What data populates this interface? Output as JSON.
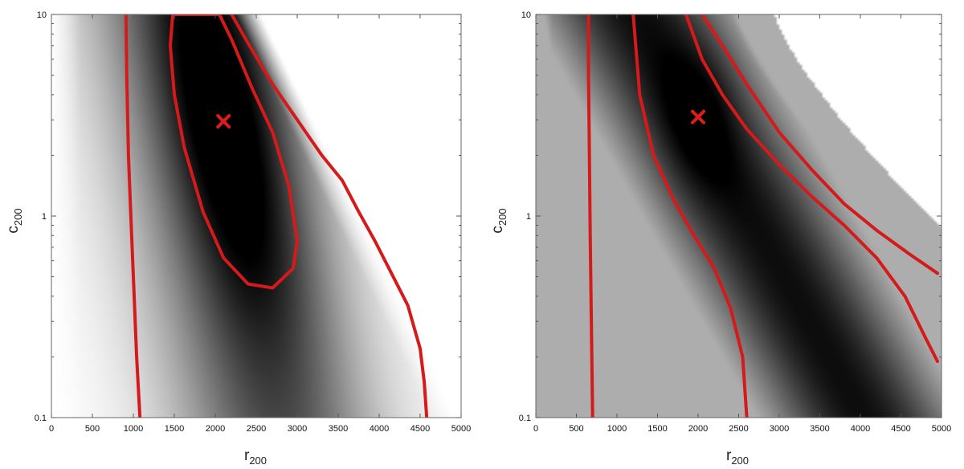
{
  "chart_data": [
    {
      "type": "heatmap",
      "panel": "left",
      "xlabel": "r",
      "xlabel_sub": "200",
      "ylabel": "c",
      "ylabel_sub": "200",
      "xlim": [
        0,
        5000
      ],
      "ylim": [
        0.1,
        10
      ],
      "y_scale": "log",
      "x_ticks": [
        "0",
        "500",
        "1000",
        "1500",
        "2000",
        "2500",
        "3000",
        "3500",
        "4000",
        "4500",
        "5000"
      ],
      "y_ticks": [
        "0.1",
        "1",
        "10"
      ],
      "colormap": "grayscale (darker = higher likelihood)",
      "best_fit": {
        "r200": 2100,
        "c200": 2.95
      },
      "contours": [
        {
          "name": "inner contour",
          "points": [
            [
              2100,
              0.62
            ],
            [
              2400,
              0.46
            ],
            [
              2700,
              0.44
            ],
            [
              2950,
              0.55
            ],
            [
              3000,
              0.75
            ],
            [
              2900,
              1.4
            ],
            [
              2700,
              2.6
            ],
            [
              2450,
              4.3
            ],
            [
              2200,
              7.5
            ],
            [
              2050,
              10
            ],
            [
              1480,
              10
            ],
            [
              1450,
              7
            ],
            [
              1500,
              4
            ],
            [
              1620,
              2.2
            ],
            [
              1850,
              1.05
            ],
            [
              2100,
              0.62
            ]
          ]
        },
        {
          "name": "outer contour",
          "points": [
            [
              2200,
              10
            ],
            [
              2400,
              7.2
            ],
            [
              2700,
              4.5
            ],
            [
              3000,
              3.0
            ],
            [
              3300,
              2.0
            ],
            [
              3550,
              1.5
            ],
            [
              3750,
              1.05
            ],
            [
              3950,
              0.75
            ],
            [
              4150,
              0.52
            ],
            [
              4350,
              0.36
            ],
            [
              4500,
              0.22
            ],
            [
              4550,
              0.15
            ],
            [
              4580,
              0.1
            ]
          ]
        },
        {
          "name": "left contour",
          "points": [
            [
              910,
              10
            ],
            [
              920,
              5
            ],
            [
              940,
              2
            ],
            [
              970,
              1
            ],
            [
              1000,
              0.5
            ],
            [
              1040,
              0.2
            ],
            [
              1080,
              0.1
            ]
          ]
        }
      ]
    },
    {
      "type": "heatmap",
      "panel": "right",
      "xlabel": "r",
      "xlabel_sub": "200",
      "ylabel": "c",
      "ylabel_sub": "200",
      "xlim": [
        0,
        5000
      ],
      "ylim": [
        0.1,
        10
      ],
      "y_scale": "log",
      "x_ticks": [
        "0",
        "500",
        "1000",
        "1500",
        "2000",
        "2500",
        "3000",
        "3500",
        "4000",
        "4500",
        "5000"
      ],
      "y_ticks": [
        "0.1",
        "1",
        "10"
      ],
      "colormap": "grayscale (darker = higher likelihood)",
      "best_fit": {
        "r200": 2000,
        "c200": 3.1
      },
      "contours": [
        {
          "name": "left contour",
          "points": [
            [
              650,
              10
            ],
            [
              650,
              5
            ],
            [
              660,
              2
            ],
            [
              670,
              0.8
            ],
            [
              680,
              0.4
            ],
            [
              700,
              0.1
            ]
          ]
        },
        {
          "name": "middle contour",
          "points": [
            [
              1200,
              10
            ],
            [
              1280,
              4
            ],
            [
              1450,
              2
            ],
            [
              1700,
              1.2
            ],
            [
              1950,
              0.8
            ],
            [
              2200,
              0.55
            ],
            [
              2400,
              0.35
            ],
            [
              2550,
              0.2
            ],
            [
              2600,
              0.1
            ]
          ]
        },
        {
          "name": "inner right contour",
          "points": [
            [
              1850,
              10
            ],
            [
              2050,
              6
            ],
            [
              2300,
              4
            ],
            [
              2600,
              2.7
            ],
            [
              3000,
              1.8
            ],
            [
              3400,
              1.25
            ],
            [
              3800,
              0.9
            ],
            [
              4200,
              0.62
            ],
            [
              4550,
              0.4
            ],
            [
              4800,
              0.25
            ],
            [
              4950,
              0.19
            ]
          ]
        },
        {
          "name": "outer right contour",
          "points": [
            [
              2050,
              10
            ],
            [
              2300,
              7
            ],
            [
              2600,
              4.5
            ],
            [
              3000,
              2.6
            ],
            [
              3400,
              1.7
            ],
            [
              3800,
              1.15
            ],
            [
              4200,
              0.85
            ],
            [
              4600,
              0.65
            ],
            [
              4950,
              0.52
            ]
          ]
        }
      ]
    }
  ]
}
